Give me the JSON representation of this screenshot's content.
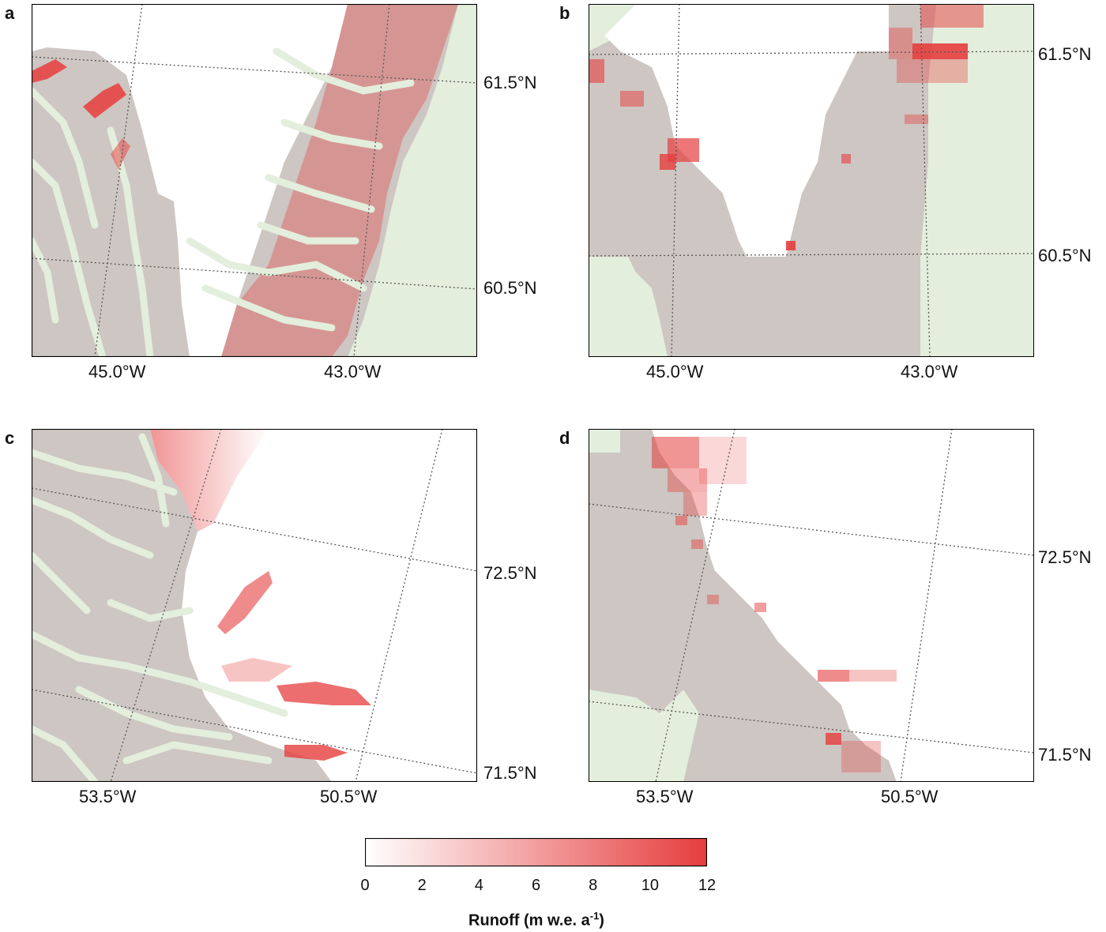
{
  "panels": [
    {
      "letter": "a",
      "lat_labels": [
        "61.5°N",
        "60.5°N"
      ],
      "lon_labels": [
        "45.0°W",
        "43.0°W"
      ]
    },
    {
      "letter": "b",
      "lat_labels": [
        "61.5°N",
        "60.5°N"
      ],
      "lon_labels": [
        "45.0°W",
        "43.0°W"
      ]
    },
    {
      "letter": "c",
      "lat_labels": [
        "72.5°N",
        "71.5°N"
      ],
      "lon_labels": [
        "53.5°W",
        "50.5°W"
      ]
    },
    {
      "letter": "d",
      "lat_labels": [
        "72.5°N",
        "71.5°N"
      ],
      "lon_labels": [
        "53.5°W",
        "50.5°W"
      ]
    }
  ],
  "colorbar": {
    "title_main": "Runoff (m w.e. a",
    "title_sup": "-1",
    "title_end": ")",
    "ticks": [
      "0",
      "2",
      "4",
      "6",
      "8",
      "10",
      "12"
    ],
    "range": [
      0,
      12
    ],
    "color_min": "#ffffff",
    "color_max": "#e63d3d"
  },
  "colors": {
    "land": "#cdc6c2",
    "ocean": "#e3eedc",
    "ice": "#ffffff",
    "runoff": "#e63d3d"
  }
}
